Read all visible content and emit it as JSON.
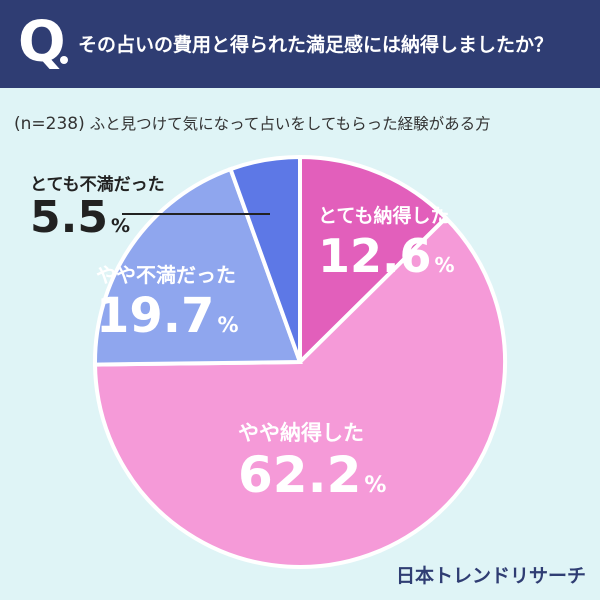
{
  "header": {
    "q_mark": "Q",
    "question": "その占いの費用と得られた満足感には納得しましたか？"
  },
  "subtitle": {
    "n": "(n=238)",
    "text": "ふと見つけて気になって占いをしてもらった経験がある方"
  },
  "brand": "日本トレンドリサーチ",
  "colors": {
    "header_bg": "#2f3d73",
    "background": "#dff4f6",
    "slice_1": "#e25fbb",
    "slice_2": "#f59ad8",
    "slice_3": "#8fa6ee",
    "slice_4": "#5d78e6"
  },
  "chart_data": {
    "type": "pie",
    "title": "",
    "start": "12 o'clock, clockwise",
    "slices": [
      {
        "label": "とても納得した",
        "value": 12.6,
        "display": "12.6",
        "unit": "%",
        "color": "#e25fbb"
      },
      {
        "label": "やや納得した",
        "value": 62.2,
        "display": "62.2",
        "unit": "%",
        "color": "#f59ad8"
      },
      {
        "label": "やや不満だった",
        "value": 19.7,
        "display": "19.7",
        "unit": "%",
        "color": "#8fa6ee"
      },
      {
        "label": "とても不満だった",
        "value": 5.5,
        "display": "5.5",
        "unit": "%",
        "color": "#5d78e6"
      }
    ]
  }
}
